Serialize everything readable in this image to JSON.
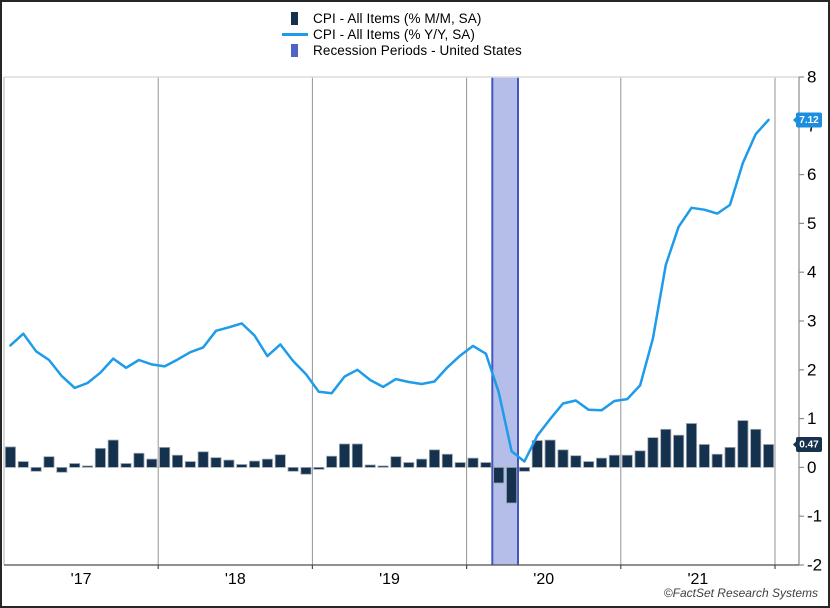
{
  "legend": {
    "items": [
      {
        "label": "CPI - All Items (% M/M, SA)",
        "swatch": "bar",
        "color": "#14314e"
      },
      {
        "label": "CPI - All Items (% Y/Y, SA)",
        "swatch": "line",
        "color": "#1e9be9"
      },
      {
        "label": "Recession Periods - United States",
        "swatch": "bar",
        "color": "#4f63c6"
      }
    ]
  },
  "chart_data": {
    "type": "bar",
    "subtype": "bar+line monthly time-series combo",
    "x": {
      "start": "2017-01",
      "end": "2021-12",
      "frequency": "monthly",
      "tick_labels": [
        "'17",
        "'18",
        "'19",
        "'20",
        "'21"
      ],
      "gridlines": "vertical gray line at each January"
    },
    "y_axis": {
      "side": "right",
      "min": -2,
      "max": 8,
      "ticks": [
        8,
        7,
        6,
        5,
        4,
        3,
        2,
        1,
        0,
        -1,
        -2
      ]
    },
    "series": [
      {
        "name": "CPI - All Items (% M/M, SA)",
        "type": "bar",
        "color": "#14314e",
        "last_value_label": "0.47",
        "values": [
          0.42,
          0.12,
          -0.08,
          0.22,
          -0.1,
          0.08,
          0.03,
          0.39,
          0.56,
          0.08,
          0.29,
          0.17,
          0.41,
          0.25,
          0.12,
          0.32,
          0.2,
          0.15,
          0.06,
          0.13,
          0.17,
          0.26,
          -0.08,
          -0.14,
          -0.04,
          0.23,
          0.48,
          0.48,
          0.05,
          0.03,
          0.22,
          0.1,
          0.17,
          0.36,
          0.27,
          0.1,
          0.19,
          0.1,
          -0.32,
          -0.73,
          -0.08,
          0.55,
          0.56,
          0.36,
          0.24,
          0.12,
          0.19,
          0.25,
          0.25,
          0.34,
          0.61,
          0.78,
          0.66,
          0.9,
          0.47,
          0.27,
          0.41,
          0.96,
          0.78,
          0.47
        ]
      },
      {
        "name": "CPI - All Items (% Y/Y, SA)",
        "type": "line",
        "color": "#1e9be9",
        "last_value_label": "7.12",
        "values": [
          2.5,
          2.74,
          2.38,
          2.2,
          1.87,
          1.63,
          1.73,
          1.94,
          2.23,
          2.04,
          2.2,
          2.11,
          2.07,
          2.21,
          2.36,
          2.46,
          2.8,
          2.87,
          2.95,
          2.7,
          2.28,
          2.52,
          2.18,
          1.91,
          1.55,
          1.52,
          1.86,
          2.0,
          1.79,
          1.65,
          1.81,
          1.75,
          1.71,
          1.76,
          2.05,
          2.29,
          2.49,
          2.33,
          1.54,
          0.33,
          0.12,
          0.65,
          0.99,
          1.31,
          1.37,
          1.18,
          1.17,
          1.36,
          1.4,
          1.68,
          2.64,
          4.15,
          4.93,
          5.32,
          5.28,
          5.2,
          5.38,
          6.24,
          6.83,
          7.12
        ]
      }
    ],
    "recession_band": {
      "name": "Recession Periods - United States",
      "start": "2020-03",
      "end": "2020-04",
      "start_month_index": 38,
      "end_month_index": 40,
      "fill": "#b5bee9",
      "border": "#4656bf"
    },
    "badges": [
      {
        "text": "7.12",
        "value": 7.12,
        "bg": "#1b8ee0",
        "fg": "#ffffff",
        "series": "yoy"
      },
      {
        "text": "0.47",
        "value": 0.47,
        "bg": "#16324f",
        "fg": "#ffffff",
        "series": "mom"
      }
    ]
  },
  "footer": {
    "credit": "©FactSet Research Systems"
  }
}
